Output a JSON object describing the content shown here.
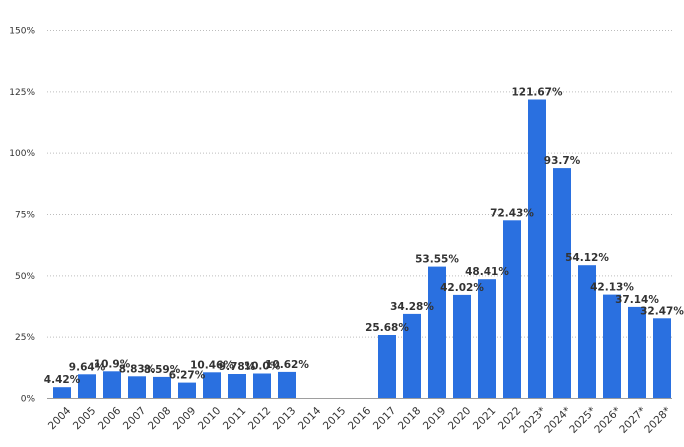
{
  "chart_data": {
    "type": "bar",
    "categories": [
      "2004",
      "2005",
      "2006",
      "2007",
      "2008",
      "2009",
      "2010",
      "2011",
      "2012",
      "2013",
      "2014",
      "2015",
      "2016",
      "2017",
      "2018",
      "2019",
      "2020",
      "2021",
      "2022",
      "2023*",
      "2024*",
      "2025*",
      "2026*",
      "2027*",
      "2028*"
    ],
    "values": [
      4.42,
      9.64,
      10.9,
      8.83,
      8.59,
      6.27,
      10.46,
      9.78,
      10.0,
      10.62,
      null,
      null,
      null,
      25.68,
      34.28,
      53.55,
      42.02,
      48.41,
      72.43,
      121.67,
      93.7,
      54.12,
      42.13,
      37.14,
      32.47
    ],
    "data_labels": [
      "4.42%",
      "9.64%",
      "10.9%",
      "8.83%",
      "8.59%",
      "6.27%",
      "10.46%",
      "9.78%",
      "10.0%",
      "10.62%",
      "",
      "",
      "",
      "25.68%",
      "34.28%",
      "53.55%",
      "42.02%",
      "48.41%",
      "72.43%",
      "121.67%",
      "93.7%",
      "54.12%",
      "42.13%",
      "37.14%",
      "32.47%"
    ],
    "yticks": [
      0,
      25,
      50,
      75,
      100,
      125,
      150
    ],
    "ytick_labels": [
      "0%",
      "25%",
      "50%",
      "75%",
      "100%",
      "125%",
      "150%"
    ],
    "ylim": [
      0,
      150
    ],
    "title": "",
    "xlabel": "",
    "ylabel": "",
    "grid": true,
    "legend": "none",
    "bar_color": "#2a70e0"
  }
}
